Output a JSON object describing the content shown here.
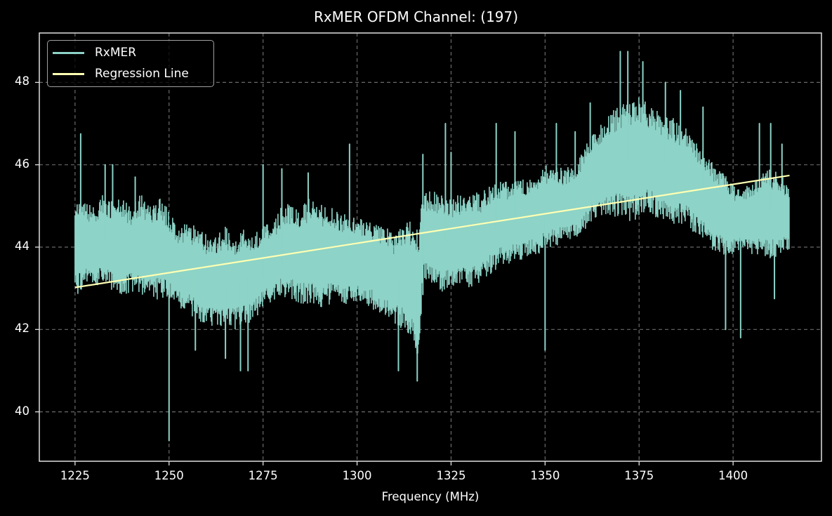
{
  "chart_data": {
    "type": "line",
    "title": "RxMER OFDM Channel: (197)",
    "xlabel": "Frequency (MHz)",
    "ylabel": "",
    "xlim": [
      1215.5,
      1423.5
    ],
    "ylim": [
      38.8,
      49.2
    ],
    "xticks": [
      1225,
      1250,
      1275,
      1300,
      1325,
      1350,
      1375,
      1400
    ],
    "yticks": [
      40,
      42,
      44,
      46,
      48
    ],
    "grid": true,
    "grid_style": "dashed",
    "legend_position": "upper left",
    "colors": {
      "background": "#000000",
      "rxmer": "#8dd3c7",
      "regression": "#ffffb3",
      "grid": "#6a6a6a",
      "axes": "#e0e0e0"
    },
    "series": [
      {
        "name": "RxMER",
        "style": "noisy band (envelope approx.)",
        "x": [
          1225,
          1227.5,
          1230,
          1232.5,
          1235,
          1237.5,
          1240,
          1242.5,
          1245,
          1247.5,
          1250,
          1252.5,
          1255,
          1257.5,
          1260,
          1262.5,
          1265,
          1267.5,
          1270,
          1272.5,
          1275,
          1277.5,
          1280,
          1282.5,
          1285,
          1287.5,
          1290,
          1292.5,
          1295,
          1297.5,
          1300,
          1302.5,
          1305,
          1307.5,
          1310,
          1312.5,
          1315,
          1316.5,
          1317.5,
          1320,
          1322.5,
          1325,
          1327.5,
          1330,
          1332.5,
          1335,
          1337.5,
          1340,
          1342.5,
          1345,
          1347.5,
          1350,
          1352.5,
          1355,
          1357.5,
          1360,
          1362.5,
          1365,
          1367.5,
          1370,
          1372.5,
          1375,
          1377.5,
          1380,
          1382.5,
          1385,
          1387.5,
          1390,
          1392.5,
          1395,
          1397.5,
          1400,
          1402.5,
          1405,
          1407.5,
          1410,
          1412.5,
          1415
        ],
        "upper": [
          45.3,
          45.1,
          45.0,
          45.3,
          45.1,
          45.2,
          45.0,
          45.3,
          45.0,
          45.2,
          44.9,
          44.5,
          44.6,
          44.5,
          44.3,
          44.3,
          44.5,
          44.3,
          44.5,
          44.3,
          44.6,
          44.6,
          45.0,
          45.1,
          45.0,
          45.2,
          45.1,
          45.0,
          44.9,
          44.8,
          44.7,
          44.7,
          44.6,
          44.5,
          44.3,
          44.6,
          44.7,
          44.5,
          45.3,
          45.4,
          45.3,
          45.2,
          45.3,
          45.4,
          45.3,
          45.5,
          45.6,
          45.6,
          45.7,
          45.7,
          45.8,
          46.0,
          46.0,
          45.9,
          46.0,
          46.3,
          46.8,
          47.0,
          47.3,
          47.5,
          47.6,
          47.7,
          47.5,
          47.3,
          47.2,
          47.1,
          46.9,
          46.6,
          46.3,
          46.0,
          45.8,
          45.5,
          45.4,
          45.6,
          45.8,
          45.9,
          45.8,
          45.5
        ],
        "lower": [
          42.8,
          43.0,
          43.1,
          43.0,
          42.9,
          42.8,
          42.9,
          42.8,
          42.8,
          42.7,
          42.7,
          42.5,
          42.4,
          42.2,
          42.1,
          42.0,
          42.1,
          42.0,
          42.1,
          42.2,
          42.5,
          42.6,
          42.8,
          42.7,
          42.6,
          42.6,
          42.5,
          42.6,
          42.7,
          42.6,
          42.6,
          42.6,
          42.4,
          42.3,
          42.1,
          42.0,
          41.5,
          41.2,
          43.2,
          43.0,
          42.9,
          43.0,
          43.0,
          43.0,
          43.1,
          43.3,
          43.5,
          43.6,
          43.6,
          43.7,
          43.8,
          43.9,
          44.0,
          44.1,
          44.2,
          44.3,
          44.6,
          44.7,
          44.7,
          44.7,
          44.6,
          44.7,
          44.8,
          44.7,
          44.6,
          44.5,
          44.5,
          44.3,
          44.1,
          43.9,
          43.8,
          43.8,
          43.9,
          43.8,
          43.8,
          43.7,
          43.8,
          43.9
        ],
        "spikes": [
          {
            "x": 1226.5,
            "y": 46.75
          },
          {
            "x": 1233,
            "y": 46.0
          },
          {
            "x": 1235,
            "y": 46.0
          },
          {
            "x": 1241,
            "y": 45.7
          },
          {
            "x": 1250,
            "y": 39.3
          },
          {
            "x": 1257,
            "y": 41.5
          },
          {
            "x": 1265,
            "y": 41.3
          },
          {
            "x": 1269,
            "y": 41.0
          },
          {
            "x": 1271,
            "y": 41.0
          },
          {
            "x": 1275,
            "y": 46.0
          },
          {
            "x": 1280,
            "y": 45.9
          },
          {
            "x": 1287,
            "y": 45.8
          },
          {
            "x": 1298,
            "y": 46.5
          },
          {
            "x": 1311,
            "y": 41.0
          },
          {
            "x": 1316,
            "y": 40.75
          },
          {
            "x": 1317.5,
            "y": 46.25
          },
          {
            "x": 1323.5,
            "y": 47.0
          },
          {
            "x": 1325,
            "y": 46.3
          },
          {
            "x": 1337,
            "y": 47.0
          },
          {
            "x": 1342,
            "y": 46.8
          },
          {
            "x": 1350,
            "y": 41.5
          },
          {
            "x": 1353,
            "y": 47.0
          },
          {
            "x": 1358,
            "y": 46.8
          },
          {
            "x": 1362,
            "y": 47.5
          },
          {
            "x": 1370,
            "y": 48.75
          },
          {
            "x": 1372,
            "y": 48.75
          },
          {
            "x": 1376,
            "y": 48.5
          },
          {
            "x": 1382,
            "y": 48.0
          },
          {
            "x": 1386,
            "y": 47.8
          },
          {
            "x": 1392,
            "y": 47.4
          },
          {
            "x": 1398,
            "y": 42.0
          },
          {
            "x": 1402,
            "y": 41.8
          },
          {
            "x": 1407,
            "y": 47.0
          },
          {
            "x": 1410,
            "y": 47.0
          },
          {
            "x": 1411,
            "y": 42.75
          },
          {
            "x": 1413,
            "y": 46.5
          }
        ]
      },
      {
        "name": "Regression Line",
        "x": [
          1225,
          1415
        ],
        "values": [
          43.02,
          45.74
        ]
      }
    ]
  },
  "legend": {
    "items": [
      {
        "label": "RxMER",
        "color": "#8dd3c7"
      },
      {
        "label": "Regression Line",
        "color": "#ffffb3"
      }
    ]
  },
  "axes": {
    "xticks": [
      "1225",
      "1250",
      "1275",
      "1300",
      "1325",
      "1350",
      "1375",
      "1400"
    ],
    "yticks": [
      "40",
      "42",
      "44",
      "46",
      "48"
    ]
  }
}
